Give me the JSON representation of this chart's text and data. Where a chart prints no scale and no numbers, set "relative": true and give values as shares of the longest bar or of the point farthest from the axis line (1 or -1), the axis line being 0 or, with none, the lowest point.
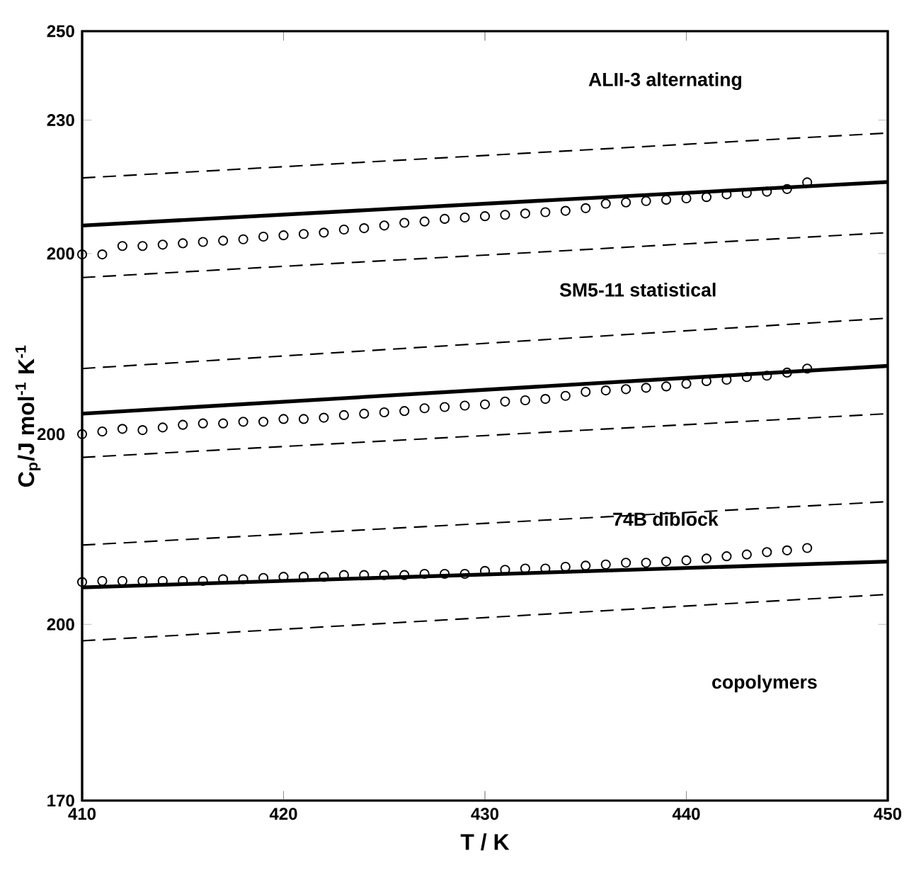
{
  "chart_data": [
    {
      "type": "line",
      "xlim": [
        410,
        450
      ],
      "xticks": [
        410,
        420,
        430,
        440,
        450
      ],
      "ylim": [
        77,
        250
      ],
      "yticks": [
        200,
        230,
        250
      ],
      "tick_labels": "y",
      "annotations": [
        "ALII-3 alternating"
      ],
      "series": [
        {
          "color": "#000000",
          "line_style": "dashed",
          "x": [
            410,
            450
          ],
          "values": [
            217.0,
            227.1
          ]
        },
        {
          "color": "#000000",
          "line_style": "solid",
          "x": [
            410,
            450
          ],
          "values": [
            206.3,
            216.1
          ]
        },
        {
          "color": "#000000",
          "line_style": "dashed",
          "x": [
            410,
            450
          ],
          "values": [
            194.6,
            204.7
          ]
        },
        {
          "type": "scatter",
          "color": "#000000",
          "marker": "circle",
          "x": [
            410,
            411,
            412,
            413,
            414,
            415,
            416,
            417,
            418,
            419,
            420,
            421,
            422,
            423,
            424,
            425,
            426,
            427,
            428,
            429,
            430,
            431,
            432,
            433,
            434,
            435,
            436,
            437,
            438,
            439,
            440,
            441,
            442,
            443,
            444,
            445,
            446
          ],
          "values": [
            199.8,
            199.8,
            201.7,
            201.7,
            202.0,
            202.3,
            202.6,
            202.9,
            203.2,
            203.8,
            204.1,
            204.4,
            204.7,
            205.4,
            205.7,
            206.3,
            206.9,
            207.2,
            207.8,
            208.1,
            208.4,
            208.7,
            209.0,
            209.3,
            209.6,
            210.2,
            211.2,
            211.5,
            211.8,
            212.1,
            212.4,
            212.7,
            213.3,
            213.6,
            213.9,
            214.5,
            216.0
          ]
        }
      ]
    },
    {
      "type": "line",
      "xlim": [
        410,
        450
      ],
      "xticks": [
        410,
        420,
        430,
        440,
        450
      ],
      "relative": true,
      "tick_labels": "y",
      "annotations": [
        "SM5-11 statistical",
        "200"
      ],
      "series": [
        {
          "color": "#000000",
          "line_style": "dashed",
          "x": [
            410,
            450
          ],
          "values": [
            0.638,
            1.0
          ]
        },
        {
          "color": "#000000",
          "line_style": "solid",
          "x": [
            410,
            450
          ],
          "values": [
            0.314,
            0.657
          ]
        },
        {
          "color": "#000000",
          "line_style": "dashed",
          "x": [
            410,
            450
          ],
          "values": [
            0.0,
            0.314
          ]
        },
        {
          "type": "scatter",
          "color": "#000000",
          "marker": "circle",
          "x": [
            410,
            411,
            412,
            413,
            414,
            415,
            416,
            417,
            418,
            419,
            420,
            421,
            422,
            423,
            424,
            425,
            426,
            427,
            428,
            429,
            430,
            431,
            432,
            433,
            434,
            435,
            436,
            437,
            438,
            439,
            440,
            441,
            442,
            443,
            444,
            445,
            446
          ],
          "values": [
            0.167,
            0.186,
            0.205,
            0.196,
            0.215,
            0.234,
            0.244,
            0.244,
            0.256,
            0.256,
            0.276,
            0.276,
            0.285,
            0.304,
            0.314,
            0.324,
            0.333,
            0.353,
            0.362,
            0.372,
            0.381,
            0.401,
            0.41,
            0.42,
            0.442,
            0.471,
            0.481,
            0.49,
            0.5,
            0.51,
            0.529,
            0.548,
            0.558,
            0.577,
            0.587,
            0.609,
            0.638
          ]
        }
      ]
    },
    {
      "type": "line",
      "xlim": [
        410,
        450
      ],
      "xticks": [
        410,
        420,
        430,
        440,
        450
      ],
      "ylim": [
        170,
        301
      ],
      "yticks": [
        170,
        200
      ],
      "xlabel": "T / K",
      "ylabel": "C$_{p}$/J mol$^{-1}$ K$^{-1}$",
      "annotations": [
        "74B diblock",
        "copolymers"
      ],
      "series": [
        {
          "color": "#000000",
          "line_style": "dashed",
          "x": [
            410,
            450
          ],
          "values": [
            213.5,
            220.9
          ]
        },
        {
          "color": "#000000",
          "line_style": "solid",
          "x": [
            410,
            450
          ],
          "values": [
            206.3,
            210.7
          ]
        },
        {
          "color": "#000000",
          "line_style": "dashed",
          "x": [
            410,
            450
          ],
          "values": [
            197.2,
            205.1
          ]
        },
        {
          "type": "scatter",
          "color": "#000000",
          "marker": "circle",
          "x": [
            410,
            411,
            412,
            413,
            414,
            415,
            416,
            417,
            418,
            419,
            420,
            421,
            422,
            423,
            424,
            425,
            426,
            427,
            428,
            429,
            430,
            431,
            432,
            433,
            434,
            435,
            436,
            437,
            438,
            439,
            440,
            441,
            442,
            443,
            444,
            445,
            446
          ],
          "values": [
            207.2,
            207.4,
            207.4,
            207.4,
            207.4,
            207.4,
            207.4,
            207.7,
            207.7,
            207.9,
            208.1,
            208.1,
            208.1,
            208.4,
            208.4,
            208.4,
            208.4,
            208.6,
            208.6,
            208.6,
            209.1,
            209.3,
            209.5,
            209.5,
            209.8,
            210.0,
            210.2,
            210.5,
            210.5,
            210.7,
            210.9,
            211.2,
            211.6,
            211.9,
            212.3,
            212.6,
            213.0
          ]
        }
      ]
    }
  ]
}
